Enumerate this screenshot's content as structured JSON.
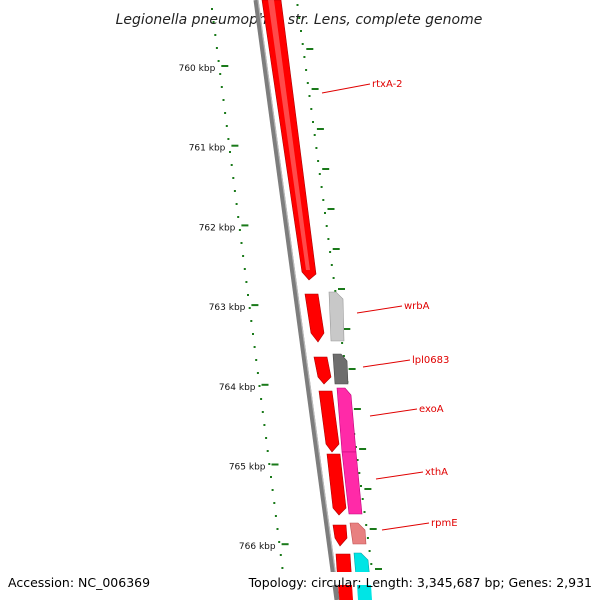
{
  "title": "Legionella pneumophila str. Lens, complete genome",
  "footer": {
    "accession": "Accession: NC_006369",
    "summary": "Topology: circular; Length: 3,345,687 bp; Genes: 2,931"
  },
  "axis": {
    "tick_labels": [
      "760 kbp",
      "761 kbp",
      "762 kbp",
      "763 kbp",
      "764 kbp",
      "765 kbp",
      "766 kbp"
    ]
  },
  "genes": [
    {
      "name": "rtxA-2",
      "strand": "plus",
      "color": "#ff0000"
    },
    {
      "name": "wrbA",
      "strand": "minus",
      "color": "#c8c8c8"
    },
    {
      "name": "lpl0683",
      "strand": "minus",
      "color": "#6e6e6e"
    },
    {
      "name": "exoA",
      "strand": "minus",
      "color": "#ff2aa8"
    },
    {
      "name": "xthA",
      "strand": "minus",
      "color": "#ff2aa8"
    },
    {
      "name": "rpmE",
      "strand": "minus",
      "color": "#e88080"
    },
    {
      "name": "",
      "strand": "minus",
      "color": "#00e5e5"
    }
  ],
  "colors": {
    "backbone": "#808080",
    "cds_plus": "#ff0000",
    "ticks": "#1a7a1a",
    "label": "#e00000"
  }
}
